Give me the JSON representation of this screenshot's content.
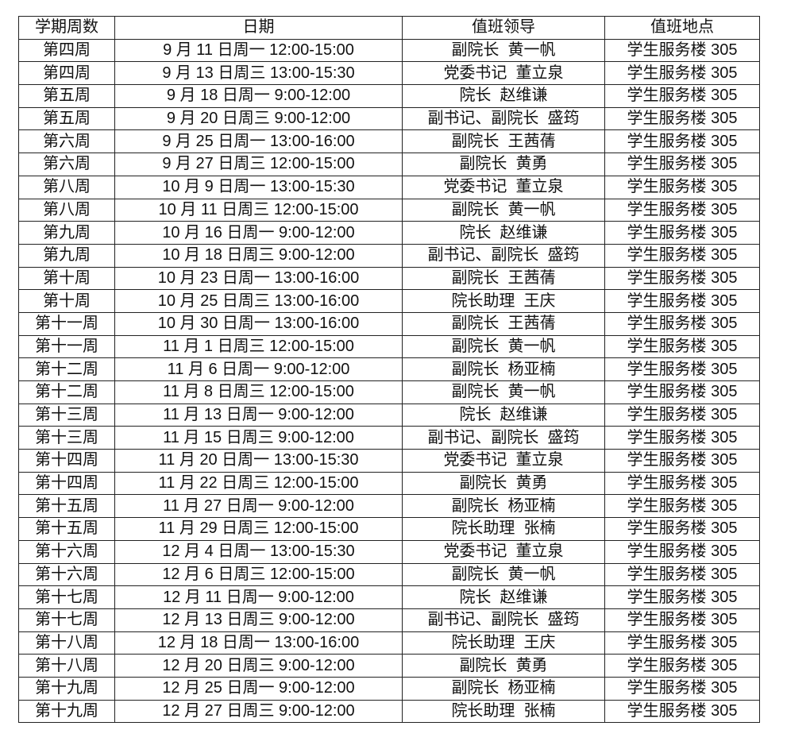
{
  "headers": [
    "学期周数",
    "日期",
    "值班领导",
    "值班地点"
  ],
  "rows": [
    [
      "第四周",
      "9 月 11 日周一 12:00-15:00",
      "副院长  黄一帆",
      "学生服务楼 305"
    ],
    [
      "第四周",
      "9 月 13 日周三 13:00-15:30",
      "党委书记  董立泉",
      "学生服务楼 305"
    ],
    [
      "第五周",
      "9 月 18 日周一 9:00-12:00",
      "院长  赵维谦",
      "学生服务楼 305"
    ],
    [
      "第五周",
      "9 月 20 日周三 9:00-12:00",
      "副书记、副院长  盛筠",
      "学生服务楼 305"
    ],
    [
      "第六周",
      "9 月 25 日周一 13:00-16:00",
      "副院长  王茜蒨",
      "学生服务楼 305"
    ],
    [
      "第六周",
      "9 月 27 日周三 12:00-15:00",
      "副院长  黄勇",
      "学生服务楼 305"
    ],
    [
      "第八周",
      "10 月 9 日周一 13:00-15:30",
      "党委书记  董立泉",
      "学生服务楼 305"
    ],
    [
      "第八周",
      "10 月 11 日周三 12:00-15:00",
      "副院长  黄一帆",
      "学生服务楼 305"
    ],
    [
      "第九周",
      "10 月 16 日周一 9:00-12:00",
      "院长  赵维谦",
      "学生服务楼 305"
    ],
    [
      "第九周",
      "10 月 18 日周三 9:00-12:00",
      "副书记、副院长  盛筠",
      "学生服务楼 305"
    ],
    [
      "第十周",
      "10 月 23 日周一 13:00-16:00",
      "副院长  王茜蒨",
      "学生服务楼 305"
    ],
    [
      "第十周",
      "10 月 25 日周三 13:00-16:00",
      "院长助理  王庆",
      "学生服务楼 305"
    ],
    [
      "第十一周",
      "10 月 30 日周一 13:00-16:00",
      "副院长  王茜蒨",
      "学生服务楼 305"
    ],
    [
      "第十一周",
      "11 月 1 日周三 12:00-15:00",
      "副院长  黄一帆",
      "学生服务楼 305"
    ],
    [
      "第十二周",
      "11 月 6 日周一 9:00-12:00",
      "副院长  杨亚楠",
      "学生服务楼 305"
    ],
    [
      "第十二周",
      "11 月 8 日周三 12:00-15:00",
      "副院长  黄一帆",
      "学生服务楼 305"
    ],
    [
      "第十三周",
      "11 月 13 日周一 9:00-12:00",
      "院长  赵维谦",
      "学生服务楼 305"
    ],
    [
      "第十三周",
      "11 月 15 日周三 9:00-12:00",
      "副书记、副院长  盛筠",
      "学生服务楼 305"
    ],
    [
      "第十四周",
      "11 月 20 日周一 13:00-15:30",
      "党委书记  董立泉",
      "学生服务楼 305"
    ],
    [
      "第十四周",
      "11 月 22 日周三 12:00-15:00",
      "副院长  黄勇",
      "学生服务楼 305"
    ],
    [
      "第十五周",
      "11 月 27 日周一 9:00-12:00",
      "副院长  杨亚楠",
      "学生服务楼 305"
    ],
    [
      "第十五周",
      "11 月 29 日周三 12:00-15:00",
      "院长助理  张楠",
      "学生服务楼 305"
    ],
    [
      "第十六周",
      "12 月 4 日周一 13:00-15:30",
      "党委书记  董立泉",
      "学生服务楼 305"
    ],
    [
      "第十六周",
      "12 月 6 日周三 12:00-15:00",
      "副院长  黄一帆",
      "学生服务楼 305"
    ],
    [
      "第十七周",
      "12 月 11 日周一 9:00-12:00",
      "院长  赵维谦",
      "学生服务楼 305"
    ],
    [
      "第十七周",
      "12 月 13 日周三 9:00-12:00",
      "副书记、副院长  盛筠",
      "学生服务楼 305"
    ],
    [
      "第十八周",
      "12 月 18 日周一 13:00-16:00",
      "院长助理  王庆",
      "学生服务楼 305"
    ],
    [
      "第十八周",
      "12 月 20 日周三 9:00-12:00",
      "副院长  黄勇",
      "学生服务楼 305"
    ],
    [
      "第十九周",
      "12 月 25 日周一 9:00-12:00",
      "副院长  杨亚楠",
      "学生服务楼 305"
    ],
    [
      "第十九周",
      "12 月 27 日周三 9:00-12:00",
      "院长助理  张楠",
      "学生服务楼 305"
    ]
  ]
}
